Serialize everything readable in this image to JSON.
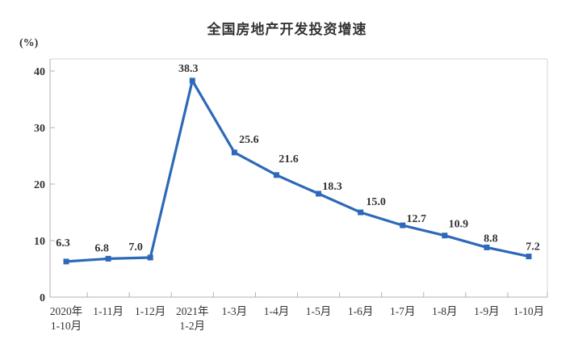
{
  "chart_data": {
    "type": "line",
    "title": "全国房地产开发投资增速",
    "ylabel": "(%)",
    "xlabel": "",
    "categories": [
      "2020年\n1-10月",
      "1-11月",
      "1-12月",
      "2021年\n1-2月",
      "1-3月",
      "1-4月",
      "1-5月",
      "1-6月",
      "1-7月",
      "1-8月",
      "1-9月",
      "1-10月"
    ],
    "values": [
      6.3,
      6.8,
      7.0,
      38.3,
      25.6,
      21.6,
      18.3,
      15.0,
      12.7,
      10.9,
      8.8,
      7.2
    ],
    "value_labels": [
      "6.3",
      "6.8",
      "7.0",
      "38.3",
      "25.6",
      "21.6",
      "18.3",
      "15.0",
      "12.7",
      "10.9",
      "8.8",
      "7.2"
    ],
    "ylim": [
      0,
      40
    ],
    "yticks": [
      0,
      10,
      20,
      30,
      40
    ],
    "grid": false,
    "legend": "none",
    "marker": "square",
    "colors": {
      "line": "#2d69b9",
      "marker": "#2d69b9",
      "text": "#333333",
      "axis": "#b0b0b0",
      "frame_light": "#d4d4d4",
      "background": "#ffffff"
    }
  }
}
